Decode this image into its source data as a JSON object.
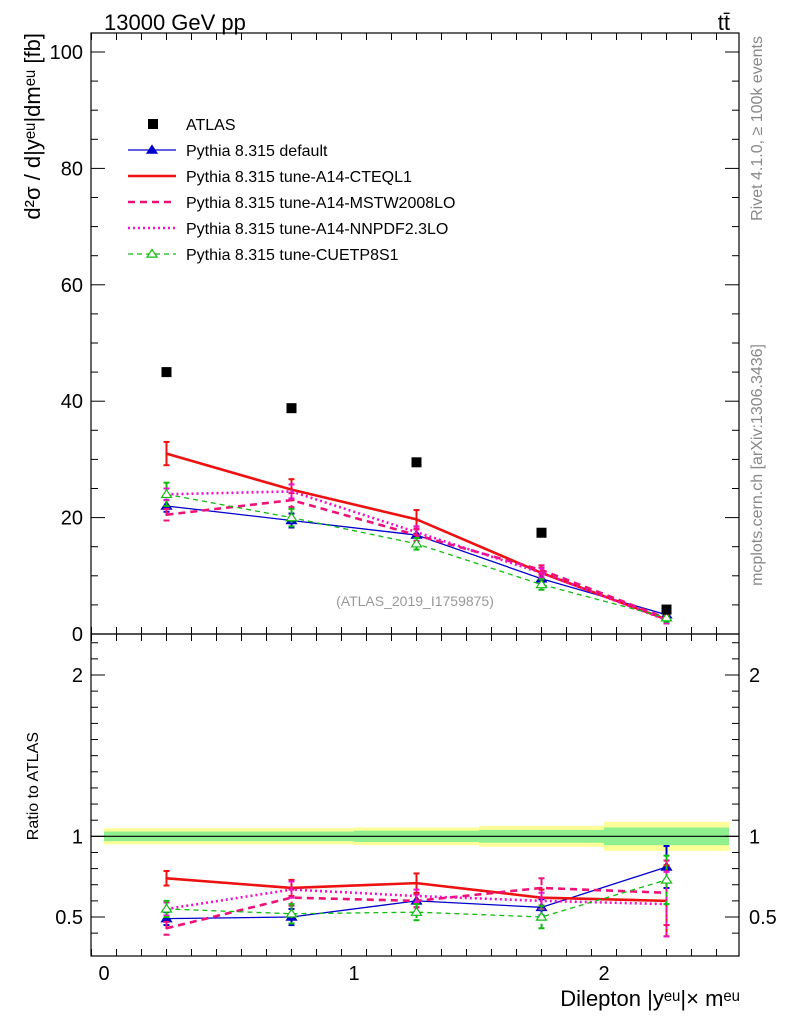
{
  "header": {
    "energy_label": "13000 GeV pp",
    "process_label": "tt̄"
  },
  "side_labels": {
    "rivet": "Rivet 4.1.0, ≥ 100k events",
    "mcplots": "mcplots.cern.ch [arXiv:1306.3436]"
  },
  "analysis_id": "(ATLAS_2019_I1759875)",
  "axes": {
    "ylabel_top": "d²σ / d|yᵉᵘ|dmᵉᵘ [fb]",
    "ylabel_ratio": "Ratio to ATLAS",
    "xlabel": "Dilepton |yᵉᵘ|× mᵉᵘ"
  },
  "colors": {
    "atlas": "#000000",
    "default": "#0000cc",
    "cteql1": "#ee1111",
    "mstw": "#ee1177",
    "nnpdf": "#ee11cc",
    "cuetp8s1": "#11bb11",
    "band_inner": "#8ef08e",
    "band_outer": "#ffff99"
  },
  "chart_data": {
    "type": "line",
    "title": "13000 GeV pp  tt̄",
    "xlabel": "Dilepton |y^eμ| × m^eμ",
    "ylabel": "d²σ / d|y^eμ|dm^eμ [fb]",
    "ratio_ylabel": "Ratio to ATLAS",
    "xlim": [
      -0.1,
      2.55
    ],
    "ylim": [
      0,
      102
    ],
    "ratio_ylim": [
      0.35,
      2.3
    ],
    "x_ticks": [
      "0",
      "1",
      "2"
    ],
    "y_ticks": [
      "0",
      "20",
      "40",
      "60",
      "80",
      "100"
    ],
    "ratio_y_ticks": [
      "0.5",
      "1",
      "2"
    ],
    "x": [
      0.25,
      0.75,
      1.25,
      1.75,
      2.25
    ],
    "bin_edges": [
      0,
      0.5,
      1.0,
      1.5,
      2.0,
      2.5
    ],
    "reference": {
      "name": "ATLAS",
      "values": [
        45.0,
        38.8,
        29.5,
        17.4,
        4.2
      ],
      "band_inner": [
        0.03,
        0.03,
        0.035,
        0.04,
        0.055
      ],
      "band_outer": [
        0.05,
        0.05,
        0.055,
        0.065,
        0.09
      ]
    },
    "series": [
      {
        "name": "Pythia 8.315 default",
        "values": [
          22.0,
          19.5,
          17.0,
          9.5,
          3.3
        ],
        "ratio": [
          0.49,
          0.5,
          0.6,
          0.56,
          0.81
        ],
        "errors": [
          1.0,
          1.2,
          1.0,
          0.8,
          0.6
        ],
        "ratio_errors": [
          0.04,
          0.05,
          0.04,
          0.05,
          0.13
        ]
      },
      {
        "name": "Pythia 8.315 tune-A14-CTEQL1",
        "values": [
          31.0,
          24.8,
          19.7,
          10.5,
          2.5
        ],
        "ratio": [
          0.74,
          0.68,
          0.71,
          0.62,
          0.6
        ],
        "errors": [
          2.0,
          1.8,
          1.6,
          0.9,
          0.6
        ],
        "ratio_errors": [
          0.045,
          0.05,
          0.06,
          0.05,
          0.22
        ]
      },
      {
        "name": "Pythia 8.315 tune-A14-MSTW2008LO",
        "values": [
          20.5,
          23.0,
          17.0,
          11.0,
          2.7
        ],
        "ratio": [
          0.43,
          0.62,
          0.6,
          0.68,
          0.65
        ],
        "errors": [
          1.0,
          1.2,
          1.0,
          0.8,
          0.6
        ],
        "ratio_errors": [
          0.04,
          0.05,
          0.04,
          0.06,
          0.2
        ]
      },
      {
        "name": "Pythia 8.315 tune-A14-NNPDF2.3LO",
        "values": [
          24.0,
          24.5,
          17.5,
          10.5,
          2.4
        ],
        "ratio": [
          0.55,
          0.67,
          0.63,
          0.6,
          0.58
        ],
        "errors": [
          1.0,
          1.2,
          1.0,
          0.8,
          0.6
        ],
        "ratio_errors": [
          0.04,
          0.05,
          0.04,
          0.05,
          0.2
        ]
      },
      {
        "name": "Pythia 8.315 tune-CUETP8S1",
        "values": [
          24.0,
          20.0,
          15.5,
          8.5,
          2.8
        ],
        "ratio": [
          0.55,
          0.52,
          0.53,
          0.5,
          0.73
        ],
        "errors": [
          2.0,
          1.5,
          1.0,
          0.9,
          0.7
        ],
        "ratio_errors": [
          0.05,
          0.06,
          0.05,
          0.07,
          0.15
        ]
      }
    ],
    "legend": [
      "ATLAS",
      "Pythia 8.315 default",
      "Pythia 8.315 tune-A14-CTEQL1",
      "Pythia 8.315 tune-A14-MSTW2008LO",
      "Pythia 8.315 tune-A14-NNPDF2.3LO",
      "Pythia 8.315 tune-CUETP8S1"
    ],
    "legend_position": "top-left",
    "grid": false
  }
}
